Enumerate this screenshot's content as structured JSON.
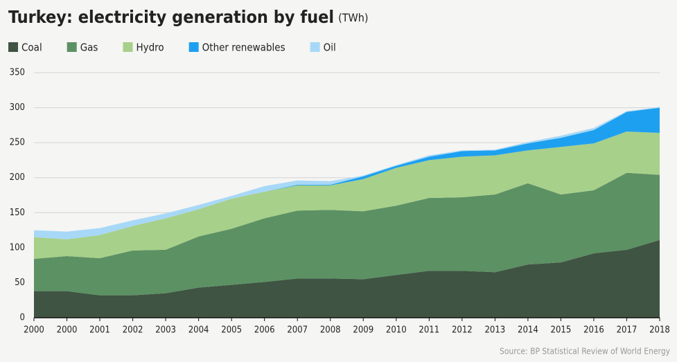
{
  "chart_data": {
    "type": "stacked_area",
    "title": "Turkey: electricity generation by fuel",
    "unit": "(TWh)",
    "source": "Source: BP Statistical Review of World Energy",
    "categories": [
      "2000",
      "2000",
      "2001",
      "2002",
      "2003",
      "2004",
      "2005",
      "2006",
      "2007",
      "2008",
      "2009",
      "2010",
      "2011",
      "2012",
      "2013",
      "2014",
      "2015",
      "2016",
      "2017",
      "2018"
    ],
    "series": [
      {
        "name": "Coal",
        "color": "#3f5443",
        "values": [
          38,
          38,
          32,
          32,
          35,
          43,
          47,
          51,
          56,
          56,
          55,
          61,
          67,
          67,
          65,
          76,
          79,
          92,
          97,
          111
        ]
      },
      {
        "name": "Gas",
        "color": "#5c9163",
        "values": [
          46,
          50,
          53,
          64,
          62,
          73,
          80,
          91,
          97,
          98,
          97,
          99,
          104,
          105,
          111,
          116,
          97,
          90,
          110,
          93
        ]
      },
      {
        "name": "Hydro",
        "color": "#a7d08a",
        "values": [
          31,
          24,
          33,
          35,
          45,
          39,
          43,
          38,
          36,
          35,
          46,
          54,
          54,
          58,
          56,
          47,
          68,
          67,
          59,
          60
        ]
      },
      {
        "name": "Other renewables",
        "color": "#1ea0f0",
        "values": [
          0,
          0,
          0,
          0,
          0,
          0,
          0,
          0,
          1,
          1,
          4,
          3,
          5,
          8,
          7,
          10,
          13,
          19,
          28,
          36
        ]
      },
      {
        "name": "Oil",
        "color": "#a7d8f7",
        "values": [
          10,
          11,
          10,
          8,
          7,
          6,
          4,
          8,
          6,
          5,
          1,
          1,
          2,
          1,
          1,
          2,
          3,
          3,
          1,
          1
        ]
      }
    ],
    "ylim": [
      0,
      350
    ],
    "yticks": [
      0,
      50,
      100,
      150,
      200,
      250,
      300,
      350
    ],
    "grid": true
  }
}
